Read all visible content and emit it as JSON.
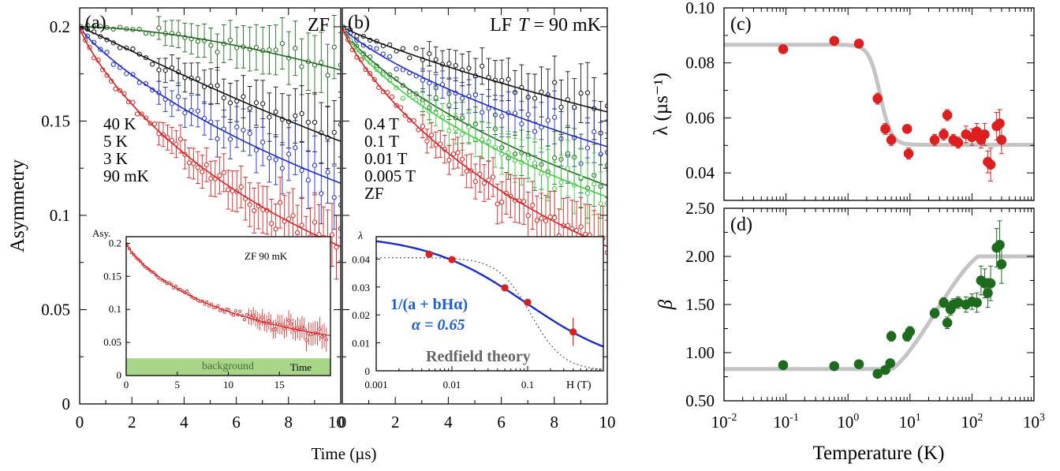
{
  "colors": {
    "red": "#dd1f1f",
    "black": "#111111",
    "blue": "#1a2ccf",
    "dgreen": "#1e6b1e",
    "lgreen": "#3fd03f",
    "fitgray": "#c4c4c4",
    "bggreen": "#9ed27c"
  },
  "chart_data": [
    {
      "id": "a",
      "type": "scatter",
      "panel_label": "(a)",
      "corner_label": "ZF",
      "xlabel": "Time (µs)",
      "ylabel": "Asymmetry",
      "xlim": [
        0,
        10
      ],
      "ylim": [
        0,
        0.21
      ],
      "x_ticks": [
        0,
        2,
        4,
        6,
        8,
        10
      ],
      "x_tick_labels": [
        "0",
        "2",
        "4",
        "6",
        "8",
        "10"
      ],
      "y_ticks": [
        0,
        0.05,
        0.1,
        0.15,
        0.2
      ],
      "y_tick_labels": [
        "0",
        "0.05",
        "0.1",
        "0.15",
        "0.2"
      ],
      "legend": [
        "40 K",
        "5 K",
        "3 K",
        "90 mK"
      ],
      "series": [
        {
          "name": "40 K",
          "color_key": "dgreen",
          "a0": 0.2,
          "lambda": 0.029,
          "beta": 1.7
        },
        {
          "name": "5 K",
          "color_key": "black",
          "a0": 0.2,
          "lambda": 0.038,
          "beta": 1.05
        },
        {
          "name": "3 K",
          "color_key": "blue",
          "a0": 0.2,
          "lambda": 0.048,
          "beta": 0.85
        },
        {
          "name": "90 mK",
          "color_key": "red",
          "a0": 0.2,
          "lambda": 0.085,
          "beta": 0.83
        }
      ],
      "inset": {
        "ylabel": "Asy.",
        "xlabel": "Time",
        "label": "ZF 90 mK",
        "band_label": "background",
        "xlim": [
          0,
          20
        ],
        "ylim": [
          0,
          0.21
        ],
        "x_ticks": [
          0,
          5,
          10,
          15
        ],
        "x_tick_labels": [
          "0",
          "5",
          "10",
          "15"
        ],
        "y_ticks": [
          0,
          0.05,
          0.1,
          0.15,
          0.2
        ],
        "y_tick_labels": [
          "0",
          "0.05",
          "0.1",
          "0.15",
          "0.2"
        ],
        "background_level": 0.026,
        "series": {
          "a0": 0.2,
          "lambda": 0.085,
          "beta": 0.83,
          "baseline": 0.023
        }
      }
    },
    {
      "id": "b",
      "type": "scatter",
      "panel_label": "(b)",
      "corner_label_prefix": "LF",
      "corner_label_var": "T",
      "corner_label_suffix": " = 90 mK",
      "xlim": [
        0,
        10
      ],
      "ylim": [
        0,
        0.21
      ],
      "x_ticks": [
        0,
        2,
        4,
        6,
        8,
        10
      ],
      "x_tick_labels": [
        "0",
        "2",
        "4",
        "6",
        "8",
        "10"
      ],
      "legend": [
        "0.4 T",
        "0.1 T",
        "0.01 T",
        "0.005 T",
        "ZF"
      ],
      "series": [
        {
          "name": "0.4 T",
          "color_key": "black",
          "a0": 0.2,
          "lambda": 0.022,
          "beta": 0.9
        },
        {
          "name": "0.1 T",
          "color_key": "blue",
          "a0": 0.2,
          "lambda": 0.031,
          "beta": 0.82
        },
        {
          "name": "0.01 T",
          "color_key": "dgreen",
          "a0": 0.2,
          "lambda": 0.047,
          "beta": 0.8
        },
        {
          "name": "0.005 T",
          "color_key": "lgreen",
          "a0": 0.2,
          "lambda": 0.052,
          "beta": 0.78
        },
        {
          "name": "ZF",
          "color_key": "red",
          "a0": 0.2,
          "lambda": 0.085,
          "beta": 0.83
        }
      ],
      "inset": {
        "ylabel": "λ",
        "xlabel": "H (T)",
        "xlim_log": [
          -3,
          0
        ],
        "ylim": [
          0,
          0.048
        ],
        "x_ticks": [
          0.001,
          0.01,
          0.1
        ],
        "x_tick_labels": [
          "0.001",
          "0.01",
          "0.1"
        ],
        "y_ticks": [
          0,
          0.01,
          0.02,
          0.03,
          0.04
        ],
        "y_tick_labels": [
          "0",
          "0.01",
          "0.02",
          "0.03",
          "0.04"
        ],
        "fit_label": "1/(a + bHα)",
        "alpha_label": "α = 0.65",
        "redfield_label": "Redfield theory",
        "points_H": [
          0.005,
          0.01,
          0.05,
          0.1,
          0.4
        ],
        "points_lambda": [
          0.0417,
          0.0398,
          0.0297,
          0.0245,
          0.0139
        ],
        "point_errors": [
          0.001,
          0.001,
          0.001,
          0.001,
          0.005
        ],
        "fit": {
          "a": 20.5,
          "b": 95,
          "alpha": 0.65
        },
        "redfield": {
          "lambda0": 0.0405,
          "H0": 0.11
        }
      }
    },
    {
      "id": "c",
      "type": "scatter",
      "panel_label": "(c)",
      "ylabel": "λ (µs⁻¹)",
      "xlim_log": [
        -2,
        3
      ],
      "ylim": [
        0.03,
        0.1
      ],
      "y_ticks": [
        0.04,
        0.06,
        0.08,
        0.1
      ],
      "y_tick_labels": [
        "0.04",
        "0.06",
        "0.08",
        "0.10"
      ],
      "x": [
        0.09,
        0.6,
        1.5,
        3.0,
        4.0,
        5.0,
        9.0,
        9.5,
        25,
        35,
        40,
        50,
        60,
        80,
        100,
        120,
        140,
        160,
        180,
        200,
        250,
        280,
        300
      ],
      "y": [
        0.085,
        0.088,
        0.087,
        0.067,
        0.056,
        0.052,
        0.056,
        0.047,
        0.052,
        0.054,
        0.061,
        0.052,
        0.051,
        0.054,
        0.053,
        0.055,
        0.052,
        0.054,
        0.044,
        0.043,
        0.057,
        0.058,
        0.052
      ],
      "yerr": [
        0.001,
        0.001,
        0.001,
        0.002,
        0.002,
        0.002,
        0.001,
        0.002,
        0.002,
        0.002,
        0.002,
        0.002,
        0.002,
        0.003,
        0.003,
        0.003,
        0.003,
        0.004,
        0.004,
        0.006,
        0.005,
        0.005,
        0.005
      ],
      "fit": {
        "high": 0.0866,
        "low": 0.0502,
        "T0": 3.3,
        "w": 0.09
      }
    },
    {
      "id": "d",
      "type": "scatter",
      "panel_label": "(d)",
      "xlabel": "Temperature (K)",
      "ylabel": "β",
      "xlim_log": [
        -2,
        3
      ],
      "ylim": [
        0.5,
        2.5
      ],
      "y_ticks": [
        0.5,
        1.0,
        1.5,
        2.0,
        2.5
      ],
      "y_tick_labels": [
        "0.50",
        "1.00",
        "1.50",
        "2.00",
        "2.50"
      ],
      "x_ticks": [
        -2,
        -1,
        0,
        1,
        2,
        3
      ],
      "x": [
        0.09,
        0.6,
        1.5,
        3.0,
        4.0,
        4.8,
        5.0,
        9.0,
        10,
        25,
        35,
        40,
        45,
        50,
        60,
        80,
        100,
        120,
        140,
        160,
        180,
        200,
        250,
        280,
        300
      ],
      "y": [
        0.87,
        0.86,
        0.88,
        0.78,
        0.82,
        0.89,
        1.17,
        1.17,
        1.22,
        1.41,
        1.52,
        1.31,
        1.45,
        1.5,
        1.52,
        1.5,
        1.53,
        1.52,
        1.75,
        1.72,
        1.62,
        1.72,
        2.09,
        2.12,
        1.92
      ],
      "yerr": [
        0.02,
        0.02,
        0.02,
        0.02,
        0.03,
        0.04,
        0.05,
        0.05,
        0.05,
        0.05,
        0.05,
        0.06,
        0.06,
        0.06,
        0.06,
        0.08,
        0.08,
        0.1,
        0.15,
        0.15,
        0.15,
        0.18,
        0.2,
        0.25,
        0.2
      ],
      "fit": {
        "low": 0.83,
        "high": 2.0,
        "T1": 5.2,
        "T2": 125
      }
    }
  ]
}
